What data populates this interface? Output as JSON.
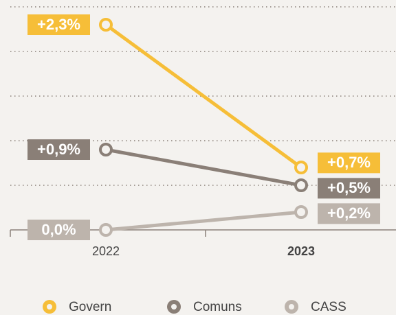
{
  "chart_data": {
    "type": "line",
    "categories": [
      "2022",
      "2023"
    ],
    "series": [
      {
        "name": "Govern",
        "color": "#f6be38",
        "values": [
          2.3,
          0.7
        ],
        "value_labels": [
          "+2,3%",
          "+0,7%"
        ]
      },
      {
        "name": "Comuns",
        "color": "#8a7f77",
        "values": [
          0.9,
          0.5
        ],
        "value_labels": [
          "+0,9%",
          "+0,5%"
        ]
      },
      {
        "name": "CASS",
        "color": "#bdb4ac",
        "values": [
          0.0,
          0.2
        ],
        "value_labels": [
          "0,0%",
          "+0,2%"
        ]
      }
    ],
    "ylim": [
      0,
      2.5
    ],
    "yticks": [
      0,
      0.5,
      1,
      1.5,
      2,
      2.5
    ],
    "grid": true
  }
}
